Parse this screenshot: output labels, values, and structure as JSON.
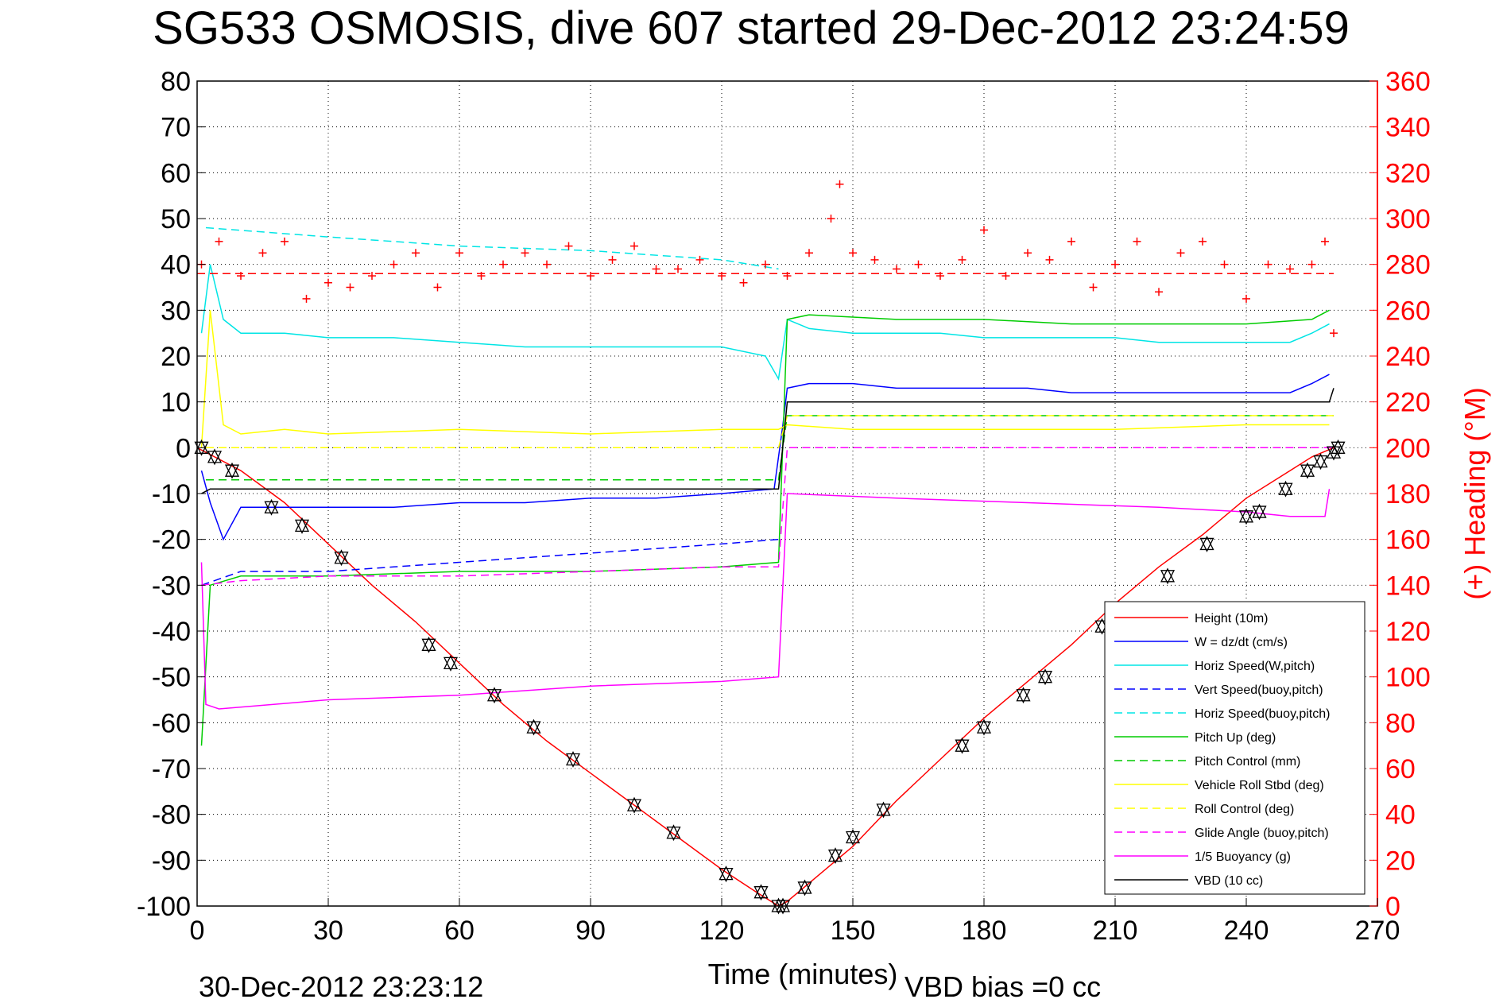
{
  "chart_data": {
    "type": "line",
    "title": "SG533 OSMOSIS, dive 607 started 29-Dec-2012 23:24:59",
    "xlabel": "Time (minutes)",
    "ylabel": "",
    "ylabel_right": "(+) Heading (°M)",
    "xlim": [
      0,
      270
    ],
    "ylim": [
      -100,
      80
    ],
    "ylim_right": [
      0,
      360
    ],
    "x_ticks": [
      "0",
      "30",
      "60",
      "90",
      "120",
      "150",
      "180",
      "210",
      "240",
      "270"
    ],
    "y_ticks": [
      "80",
      "70",
      "60",
      "50",
      "40",
      "30",
      "20",
      "10",
      "0",
      "-10",
      "-20",
      "-30",
      "-40",
      "-50",
      "-60",
      "-70",
      "-80",
      "-90",
      "-100"
    ],
    "y_ticks_right": [
      "360",
      "340",
      "320",
      "300",
      "280",
      "260",
      "240",
      "220",
      "200",
      "180",
      "160",
      "140",
      "120",
      "100",
      "80",
      "60",
      "40",
      "20",
      "0"
    ],
    "grid": true,
    "legend_position": "bottom-right",
    "footer_left": "30-Dec-2012 23:23:12",
    "footer_right": "VBD bias =0 cc",
    "series": [
      {
        "name": "Height (10m)",
        "color": "#ff0000",
        "style": "solid",
        "x": [
          0,
          10,
          20,
          30,
          40,
          50,
          60,
          70,
          80,
          90,
          100,
          110,
          120,
          128,
          133,
          135,
          140,
          150,
          160,
          170,
          180,
          190,
          200,
          210,
          220,
          230,
          240,
          250,
          255,
          260
        ],
        "y": [
          0,
          -5,
          -12,
          -21,
          -30,
          -38,
          -47,
          -56,
          -64,
          -71,
          -78,
          -85,
          -92,
          -97,
          -100,
          -99,
          -95,
          -87,
          -77,
          -68,
          -59,
          -51,
          -43,
          -34,
          -26,
          -19,
          -11,
          -5,
          -2,
          0
        ]
      },
      {
        "name": "W = dz/dt (cm/s)",
        "color": "#0000ff",
        "style": "solid",
        "x": [
          1,
          3,
          6,
          10,
          15,
          20,
          30,
          45,
          60,
          75,
          90,
          105,
          120,
          132,
          134,
          135,
          140,
          150,
          160,
          170,
          180,
          190,
          200,
          210,
          220,
          230,
          240,
          250,
          255,
          259
        ],
        "y": [
          -5,
          -12,
          -20,
          -13,
          -13,
          -13,
          -13,
          -13,
          -12,
          -12,
          -11,
          -11,
          -10,
          -9,
          5,
          13,
          14,
          14,
          13,
          13,
          13,
          13,
          12,
          12,
          12,
          12,
          12,
          12,
          14,
          16
        ]
      },
      {
        "name": "Horiz Speed(W,pitch)",
        "color": "#00e5e5",
        "style": "solid",
        "x": [
          1,
          3,
          6,
          10,
          15,
          20,
          30,
          45,
          60,
          75,
          90,
          105,
          120,
          130,
          133,
          135,
          140,
          150,
          160,
          170,
          180,
          190,
          200,
          210,
          220,
          230,
          240,
          250,
          255,
          259
        ],
        "y": [
          25,
          40,
          28,
          25,
          25,
          25,
          24,
          24,
          23,
          22,
          22,
          22,
          22,
          20,
          15,
          28,
          26,
          25,
          25,
          25,
          24,
          24,
          24,
          24,
          23,
          23,
          23,
          23,
          25,
          27
        ]
      },
      {
        "name": "Vert Speed(buoy,pitch)",
        "color": "#0000ff",
        "style": "dashed",
        "x": [
          1,
          10,
          30,
          45,
          60,
          75,
          90,
          105,
          120,
          133
        ],
        "y": [
          -30,
          -27,
          -27,
          -26,
          -25,
          -24,
          -23,
          -22,
          -21,
          -20
        ]
      },
      {
        "name": "Horiz Speed(buoy,pitch)",
        "color": "#00e5e5",
        "style": "dashed",
        "x": [
          2,
          30,
          60,
          90,
          120,
          133
        ],
        "y": [
          48,
          46,
          44,
          43,
          41,
          39
        ]
      },
      {
        "name": "Pitch Up (deg)",
        "color": "#00cc00",
        "style": "solid",
        "x": [
          1,
          3,
          10,
          30,
          60,
          90,
          120,
          133,
          135,
          140,
          160,
          180,
          200,
          220,
          240,
          255,
          259
        ],
        "y": [
          -65,
          -30,
          -28,
          -28,
          -27,
          -27,
          -26,
          -25,
          28,
          29,
          28,
          28,
          27,
          27,
          27,
          28,
          30
        ]
      },
      {
        "name": "Pitch Control (mm)",
        "color": "#00cc00",
        "style": "dashed",
        "x": [
          2,
          30,
          60,
          90,
          120,
          133,
          135,
          160,
          190,
          220,
          250,
          260
        ],
        "y": [
          -7,
          -7,
          -7,
          -7,
          -7,
          -7,
          7,
          7,
          7,
          7,
          7,
          7
        ]
      },
      {
        "name": "Vehicle Roll Stbd (deg)",
        "color": "#ffff00",
        "style": "solid",
        "x": [
          1,
          3,
          6,
          10,
          20,
          30,
          60,
          90,
          120,
          133,
          135,
          150,
          180,
          210,
          240,
          259
        ],
        "y": [
          0,
          30,
          5,
          3,
          4,
          3,
          4,
          3,
          4,
          4,
          5,
          4,
          4,
          4,
          5,
          5
        ]
      },
      {
        "name": "Roll Control (deg)",
        "color": "#ffff00",
        "style": "dashed",
        "x": [
          2,
          30,
          60,
          90,
          120,
          133,
          135,
          160,
          190,
          220,
          250,
          260
        ],
        "y": [
          0,
          0,
          0,
          0,
          0,
          0,
          7,
          7,
          7,
          7,
          7,
          7
        ]
      },
      {
        "name": "Glide Angle (buoy,pitch)",
        "color": "#ff00ff",
        "style": "dashed",
        "x": [
          1,
          10,
          30,
          60,
          90,
          120,
          133,
          135,
          160,
          190,
          220,
          250,
          260
        ],
        "y": [
          -30,
          -29,
          -28,
          -28,
          -27,
          -26,
          -26,
          0,
          0,
          0,
          0,
          0,
          0
        ]
      },
      {
        "name": "1/5 Buoyancy (g)",
        "color": "#ff00ff",
        "style": "solid",
        "x": [
          1,
          2,
          5,
          30,
          60,
          90,
          120,
          133,
          135,
          160,
          190,
          220,
          240,
          250,
          258,
          259
        ],
        "y": [
          -25,
          -56,
          -57,
          -55,
          -54,
          -52,
          -51,
          -50,
          -10,
          -11,
          -12,
          -13,
          -14,
          -15,
          -15,
          -9
        ]
      },
      {
        "name": "VBD (10 cc)",
        "color": "#000000",
        "style": "solid",
        "x": [
          1,
          3,
          30,
          60,
          90,
          120,
          133,
          135,
          160,
          190,
          220,
          250,
          259,
          260
        ],
        "y": [
          -10,
          -9,
          -9,
          -9,
          -9,
          -9,
          -9,
          10,
          10,
          10,
          10,
          10,
          10,
          13
        ]
      },
      {
        "name": "Heading",
        "color": "#ff0000",
        "style": "dashed",
        "axis": "right",
        "x": [
          0,
          260
        ],
        "y": [
          276,
          276
        ]
      },
      {
        "name": "Heading (+)",
        "color": "#ff0000",
        "style": "markers",
        "axis": "right",
        "x": [
          1,
          5,
          10,
          15,
          20,
          25,
          30,
          35,
          40,
          45,
          50,
          55,
          60,
          65,
          70,
          75,
          80,
          85,
          90,
          95,
          100,
          105,
          110,
          115,
          120,
          125,
          130,
          135,
          140,
          145,
          147,
          150,
          155,
          160,
          165,
          170,
          175,
          180,
          185,
          190,
          195,
          200,
          205,
          210,
          215,
          220,
          225,
          230,
          235,
          240,
          245,
          250,
          255,
          258,
          260
        ],
        "y": [
          280,
          290,
          275,
          285,
          290,
          265,
          272,
          270,
          275,
          280,
          285,
          270,
          285,
          275,
          280,
          285,
          280,
          288,
          275,
          282,
          288,
          278,
          278,
          282,
          275,
          272,
          280,
          275,
          285,
          300,
          315,
          285,
          282,
          278,
          280,
          275,
          282,
          295,
          275,
          285,
          282,
          290,
          270,
          280,
          290,
          268,
          285,
          290,
          280,
          265,
          280,
          278,
          280,
          290,
          250
        ]
      }
    ],
    "dive_markers": {
      "x": [
        1,
        4,
        8,
        17,
        24,
        33,
        53,
        58,
        68,
        77,
        86,
        100,
        109,
        121,
        129,
        133,
        134,
        139,
        146,
        150,
        157,
        175,
        180,
        189,
        194,
        207,
        222,
        231,
        240,
        243,
        249,
        254,
        257,
        260,
        261
      ],
      "y": [
        0,
        -2,
        -5,
        -13,
        -17,
        -24,
        -43,
        -47,
        -54,
        -61,
        -68,
        -78,
        -84,
        -93,
        -97,
        -100,
        -100,
        -96,
        -89,
        -85,
        -79,
        -65,
        -61,
        -54,
        -50,
        -39,
        -28,
        -21,
        -15,
        -14,
        -9,
        -5,
        -3,
        -1,
        0
      ]
    }
  }
}
